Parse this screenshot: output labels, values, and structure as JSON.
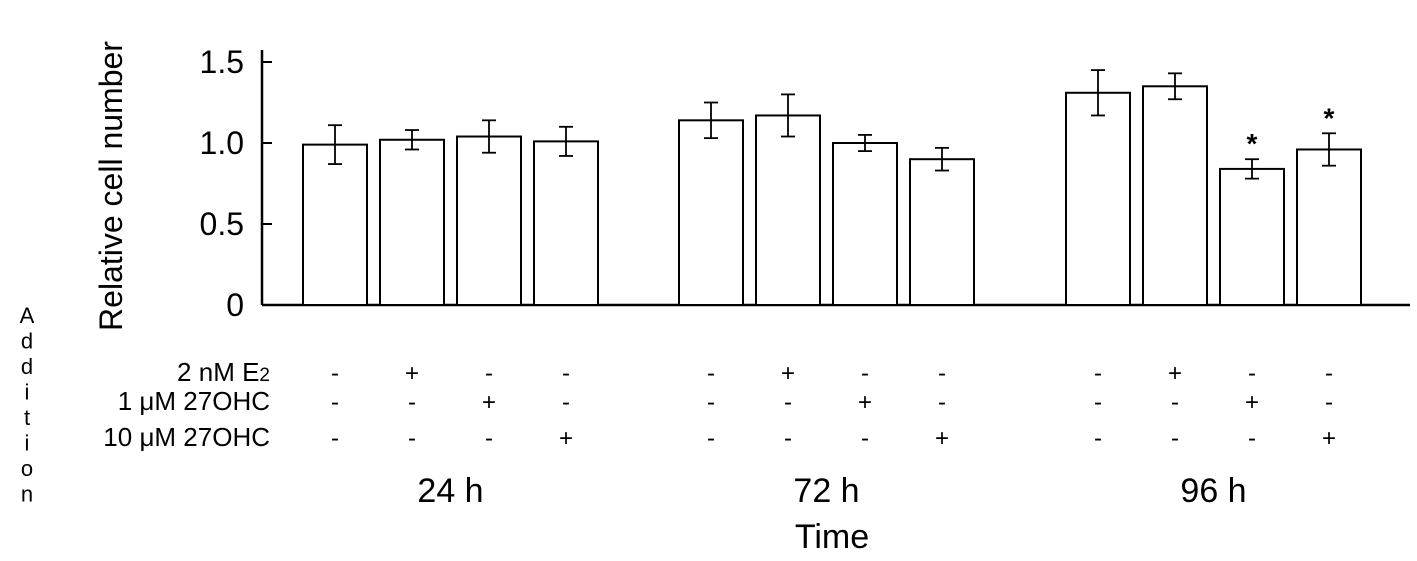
{
  "chart_data": {
    "type": "bar",
    "ylabel": "Relative cell number",
    "xlabel": "Time",
    "ylim": [
      0,
      1.5
    ],
    "yticks": [
      "0",
      "0.5",
      "1.0",
      "1.5"
    ],
    "ytick_values": [
      0,
      0.5,
      1.0,
      1.5
    ],
    "groups": [
      {
        "label": "24 h",
        "bars": [
          {
            "value": 0.99,
            "error": 0.12,
            "significant": false
          },
          {
            "value": 1.02,
            "error": 0.06,
            "significant": false
          },
          {
            "value": 1.04,
            "error": 0.1,
            "significant": false
          },
          {
            "value": 1.01,
            "error": 0.09,
            "significant": false
          }
        ]
      },
      {
        "label": "72 h",
        "bars": [
          {
            "value": 1.14,
            "error": 0.11,
            "significant": false
          },
          {
            "value": 1.17,
            "error": 0.13,
            "significant": false
          },
          {
            "value": 1.0,
            "error": 0.05,
            "significant": false
          },
          {
            "value": 0.9,
            "error": 0.07,
            "significant": false
          }
        ]
      },
      {
        "label": "96 h",
        "bars": [
          {
            "value": 1.31,
            "error": 0.14,
            "significant": false
          },
          {
            "value": 1.35,
            "error": 0.08,
            "significant": false
          },
          {
            "value": 0.84,
            "error": 0.06,
            "significant": true
          },
          {
            "value": 0.96,
            "error": 0.1,
            "significant": true
          }
        ]
      }
    ],
    "significance_mark": "*",
    "addition_label": "Addition",
    "conditions": [
      {
        "label": "2 nM E",
        "subscript": "2",
        "signs": [
          "-",
          "+",
          "-",
          "-"
        ]
      },
      {
        "label": "1 μM 27OHC",
        "subscript": "",
        "signs": [
          "-",
          "-",
          "+",
          "-"
        ]
      },
      {
        "label": "10 μM 27OHC",
        "subscript": "",
        "signs": [
          "-",
          "-",
          "-",
          "+"
        ]
      }
    ]
  }
}
